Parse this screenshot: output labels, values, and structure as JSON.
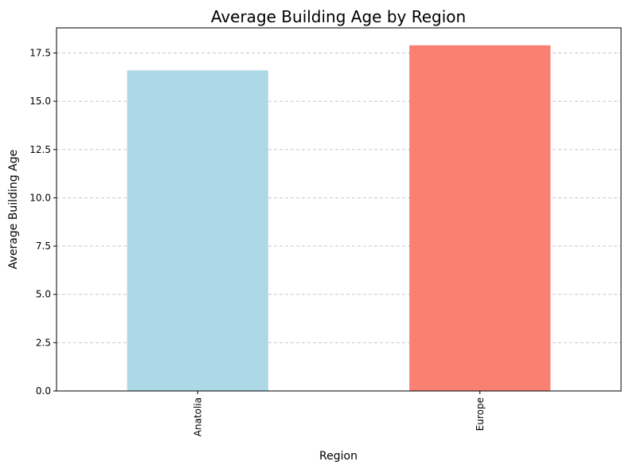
{
  "chart_data": {
    "type": "bar",
    "title": "Average Building Age by Region",
    "xlabel": "Region",
    "ylabel": "Average Building Age",
    "categories": [
      "Anatolia",
      "Europe"
    ],
    "values": [
      16.6,
      17.9
    ],
    "bar_colors": [
      "#add8e6",
      "#fa8072"
    ],
    "ylim": [
      0,
      18.8
    ],
    "yticks": [
      0.0,
      2.5,
      5.0,
      7.5,
      10.0,
      12.5,
      15.0,
      17.5
    ],
    "ytick_labels": [
      "0.0",
      "2.5",
      "5.0",
      "7.5",
      "10.0",
      "12.5",
      "15.0",
      "17.5"
    ],
    "xtick_rotation": "vertical",
    "grid": {
      "axis": "y",
      "style": "dashed",
      "color": "#c0c0c0"
    },
    "legend": "none"
  }
}
